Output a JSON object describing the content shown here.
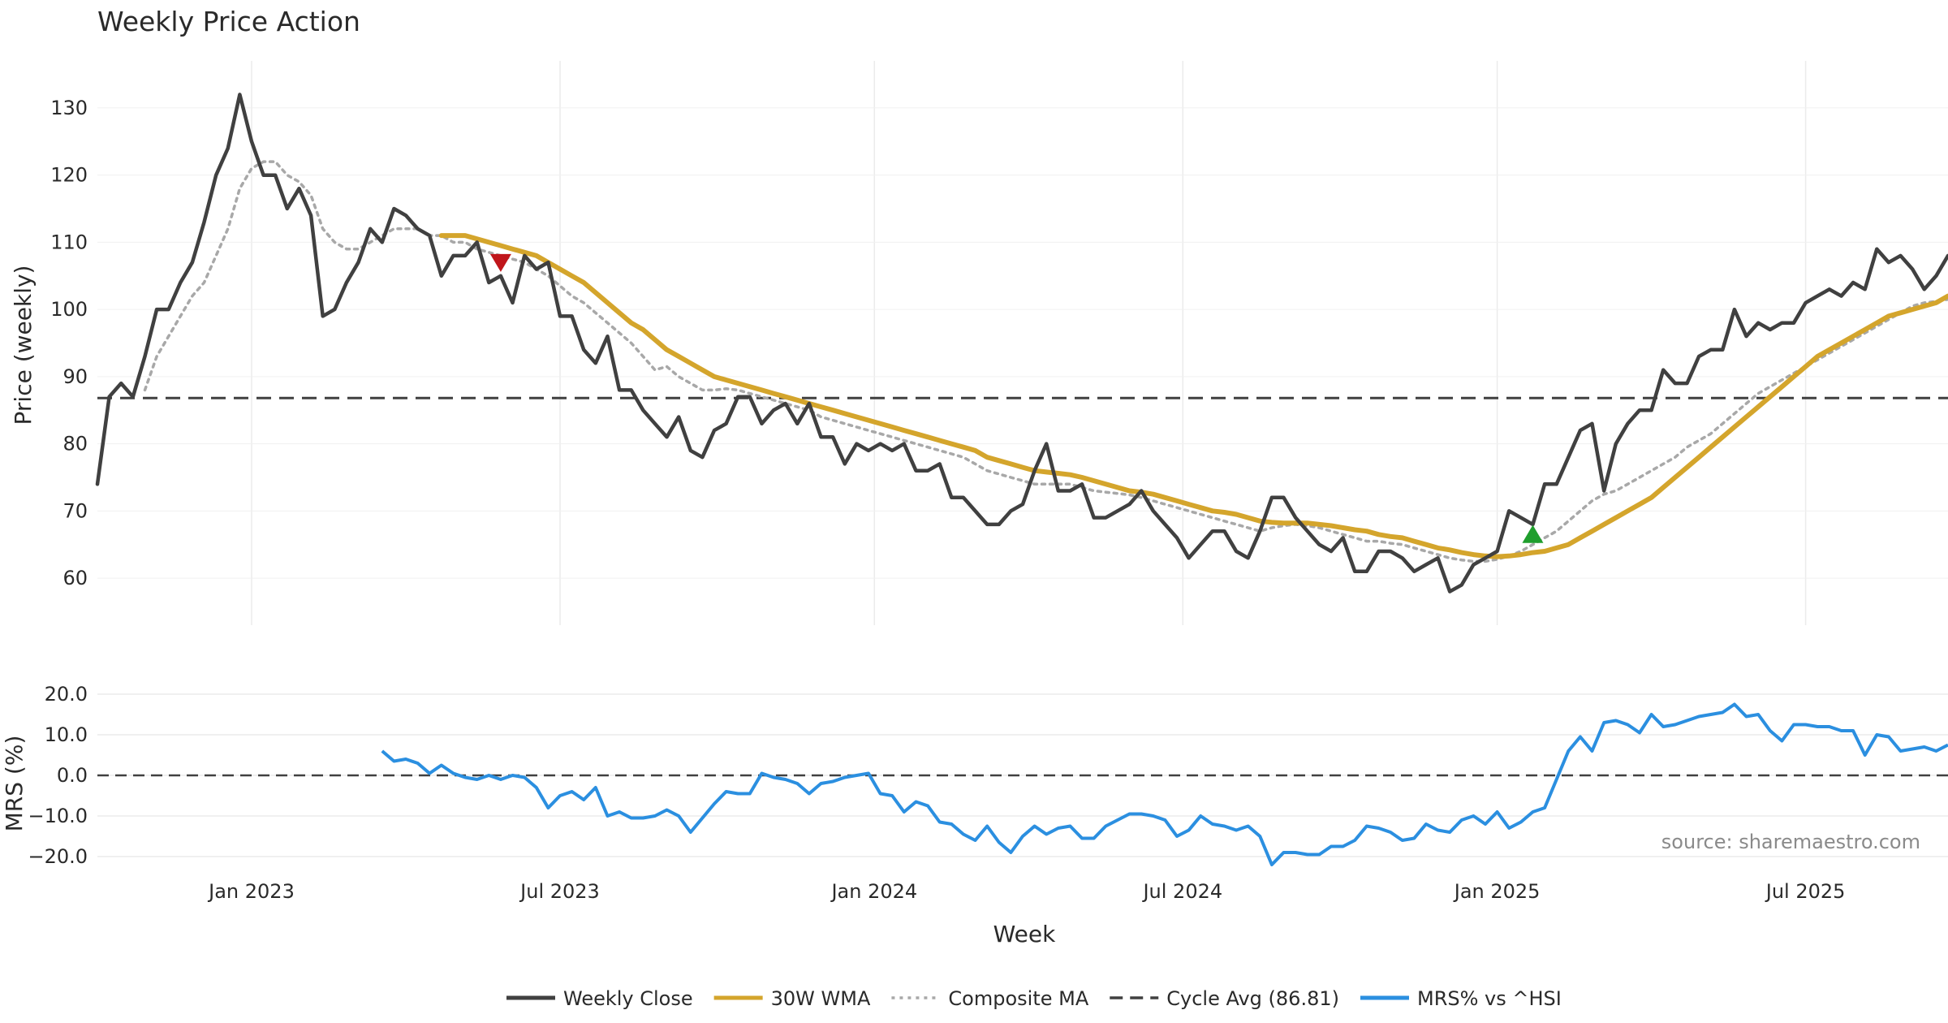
{
  "chart_data": {
    "type": "line",
    "title": "Weekly Price Action",
    "xlabel": "Week",
    "x_ticks": [
      "Jan 2023",
      "Jul 2023",
      "Jan 2024",
      "Jul 2024",
      "Jan 2025",
      "Jul 2025"
    ],
    "source": "source: sharemaestro.com",
    "price_panel": {
      "ylabel": "Price (weekly)",
      "ylim": [
        53,
        137
      ],
      "yticks": [
        "60",
        "70",
        "80",
        "90",
        "100",
        "110",
        "120",
        "130"
      ],
      "cycle_avg": 86.81,
      "series": [
        {
          "name": "Weekly Close",
          "color": "#404040",
          "values": [
            74,
            87,
            89,
            87,
            93,
            100,
            100,
            104,
            107,
            113,
            120,
            124,
            132,
            125,
            120,
            120,
            115,
            118,
            114,
            99,
            100,
            104,
            107,
            112,
            110,
            115,
            114,
            112,
            111,
            105,
            108,
            108,
            110,
            104,
            105,
            101,
            108,
            106,
            107,
            99,
            99,
            94,
            92,
            96,
            88,
            88,
            85,
            83,
            81,
            84,
            79,
            78,
            82,
            83,
            87,
            87,
            83,
            85,
            86,
            83,
            86,
            81,
            81,
            77,
            80,
            79,
            80,
            79,
            80,
            76,
            76,
            77,
            72,
            72,
            70,
            68,
            68,
            70,
            71,
            76,
            80,
            73,
            73,
            74,
            69,
            69,
            70,
            71,
            73,
            70,
            68,
            66,
            63,
            65,
            67,
            67,
            64,
            63,
            67,
            72,
            72,
            69,
            67,
            65,
            64,
            66,
            61,
            61,
            64,
            64,
            63,
            61,
            62,
            63,
            58,
            59,
            62,
            63,
            64,
            70,
            69,
            68,
            74,
            74,
            78,
            82,
            83,
            73,
            80,
            83,
            85,
            85,
            91,
            89,
            89,
            93,
            94,
            94,
            100,
            96,
            98,
            97,
            98,
            98,
            101,
            102,
            103,
            102,
            104,
            103,
            109,
            107,
            108,
            106,
            103,
            105,
            108
          ]
        },
        {
          "name": "30W WMA",
          "color": "#d4a52c",
          "values": [
            null,
            null,
            null,
            null,
            null,
            null,
            null,
            null,
            null,
            null,
            null,
            null,
            null,
            null,
            null,
            null,
            null,
            null,
            null,
            null,
            null,
            null,
            null,
            null,
            null,
            null,
            null,
            null,
            null,
            111,
            111,
            111,
            110.5,
            110,
            109.5,
            109,
            108.5,
            108,
            107,
            106,
            105,
            104,
            102.5,
            101,
            99.5,
            98,
            97,
            95.5,
            94,
            93,
            92,
            91,
            90,
            89.5,
            89,
            88.5,
            88,
            87.5,
            87,
            86.5,
            86,
            85.5,
            85,
            84.5,
            84,
            83.5,
            83,
            82.5,
            82,
            81.5,
            81,
            80.5,
            80,
            79.5,
            79,
            78,
            77.5,
            77,
            76.5,
            76,
            75.8,
            75.6,
            75.4,
            75,
            74.5,
            74,
            73.5,
            73,
            72.8,
            72.5,
            72,
            71.5,
            71,
            70.5,
            70,
            69.8,
            69.5,
            69,
            68.5,
            68.3,
            68.2,
            68.2,
            68.2,
            68,
            67.8,
            67.5,
            67.2,
            67,
            66.5,
            66.2,
            66,
            65.5,
            65,
            64.5,
            64.2,
            63.8,
            63.5,
            63.3,
            63.2,
            63.3,
            63.5,
            63.8,
            64,
            64.5,
            65,
            66,
            67,
            68,
            69,
            70,
            71,
            72,
            73.5,
            75,
            76.5,
            78,
            79.5,
            81,
            82.5,
            84,
            85.5,
            87,
            88.5,
            90,
            91.5,
            93,
            94,
            95,
            96,
            97,
            98,
            99,
            99.5,
            100,
            100.5,
            101,
            102
          ]
        },
        {
          "name": "Composite MA",
          "color": "#a8a8a8",
          "values": [
            null,
            null,
            null,
            null,
            88,
            93,
            96,
            99,
            102,
            104,
            108,
            112,
            118,
            121,
            122,
            122,
            120,
            119,
            117,
            112,
            110,
            109,
            109,
            110,
            111,
            112,
            112,
            112,
            111,
            111,
            110,
            110,
            109,
            108.5,
            108,
            107.5,
            107,
            106,
            105,
            103.5,
            102,
            101,
            99.5,
            98,
            96.5,
            95,
            93,
            91,
            91.5,
            90,
            89,
            88,
            88,
            88.2,
            88,
            87.5,
            87,
            86.5,
            86,
            85.5,
            85,
            84,
            83.5,
            83,
            82.5,
            82,
            81.5,
            81,
            80.5,
            80,
            79.5,
            79,
            78.5,
            78,
            77,
            76,
            75.5,
            75,
            74.5,
            74,
            74,
            74,
            74,
            73.5,
            73,
            72.8,
            72.6,
            72.4,
            72,
            71.5,
            71,
            70.5,
            70,
            69.5,
            69,
            68.5,
            68,
            67.5,
            67,
            67.5,
            67.8,
            68,
            67.8,
            67.5,
            67,
            66.5,
            66,
            65.5,
            65.5,
            65.2,
            65,
            64.5,
            64,
            63.5,
            63,
            62.7,
            62.5,
            62.5,
            62.8,
            63.3,
            64,
            65,
            66,
            67,
            68.5,
            70,
            71.5,
            72.5,
            73,
            74,
            75,
            76,
            77,
            78,
            79.5,
            80.5,
            81.5,
            83,
            84.5,
            86,
            87.5,
            88.5,
            89.5,
            90.5,
            91.5,
            92.5,
            93.5,
            94.5,
            95.5,
            96.5,
            97.5,
            98.5,
            99.5,
            100.5,
            101,
            101.2,
            101.5,
            102
          ]
        }
      ],
      "markers": [
        {
          "type": "sell",
          "week": 34,
          "value": 107,
          "color": "#c0161b"
        },
        {
          "type": "buy",
          "week": 121,
          "value": 66.5,
          "color": "#1f9e2d"
        }
      ]
    },
    "mrs_panel": {
      "ylabel": "MRS (%)",
      "ylim": [
        -23,
        23
      ],
      "yticks": [
        "20.0",
        "10.0",
        "0.0",
        "−10.0",
        "−20.0"
      ],
      "series": {
        "name": "MRS% vs ^HSI",
        "color": "#2b8fe0",
        "start_week": 24,
        "values": [
          6,
          3.5,
          4,
          3,
          0.5,
          2.5,
          0.5,
          -0.5,
          -1,
          0,
          -1,
          0,
          -0.5,
          -3,
          -8,
          -5,
          -4,
          -6,
          -3,
          -10,
          -9,
          -10.5,
          -10.5,
          -10,
          -8.5,
          -10,
          -14,
          -10.5,
          -7,
          -4,
          -4.5,
          -4.5,
          0.5,
          -0.5,
          -1,
          -2,
          -4.5,
          -2,
          -1.5,
          -0.5,
          0,
          0.5,
          -4.5,
          -5,
          -9,
          -6.5,
          -7.5,
          -11.5,
          -12,
          -14.5,
          -16,
          -12.5,
          -16.5,
          -19,
          -15,
          -12.5,
          -14.5,
          -13,
          -12.5,
          -15.5,
          -15.5,
          -12.5,
          -11,
          -9.5,
          -9.5,
          -10,
          -11,
          -15,
          -13.5,
          -10,
          -12,
          -12.5,
          -13.5,
          -12.5,
          -15,
          -22,
          -19,
          -19,
          -19.5,
          -19.5,
          -17.5,
          -17.5,
          -16,
          -12.5,
          -13,
          -14,
          -16,
          -15.5,
          -12,
          -13.5,
          -14,
          -11,
          -10,
          -12,
          -9,
          -13,
          -11.5,
          -9,
          -8,
          -1,
          6,
          9.5,
          6,
          13,
          13.5,
          12.5,
          10.5,
          15,
          12,
          12.5,
          13.5,
          14.5,
          15,
          15.5,
          17.5,
          14.5,
          15,
          11,
          8.5,
          12.5,
          12.5,
          12,
          12,
          11,
          11,
          5,
          10,
          9.5,
          6,
          6.5,
          7,
          6,
          7.5
        ]
      }
    },
    "legend": [
      {
        "label": "Weekly Close",
        "style": "solid",
        "color": "#404040"
      },
      {
        "label": "30W WMA",
        "style": "solid",
        "color": "#d4a52c"
      },
      {
        "label": "Composite MA",
        "style": "dotted",
        "color": "#a8a8a8"
      },
      {
        "label": "Cycle Avg (86.81)",
        "style": "dashed",
        "color": "#404040"
      },
      {
        "label": "MRS% vs ^HSI",
        "style": "solid",
        "color": "#2b8fe0"
      }
    ]
  }
}
